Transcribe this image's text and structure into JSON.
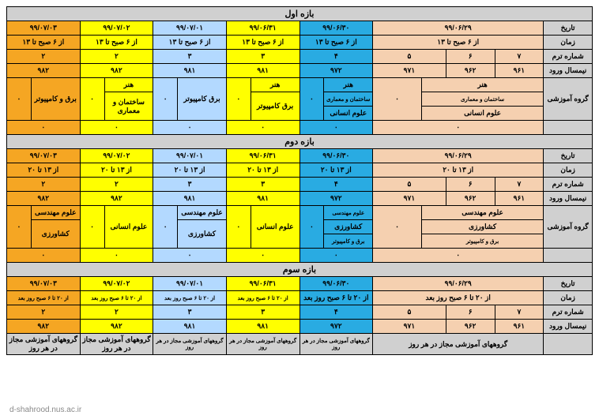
{
  "sections": [
    {
      "title": "بازه اول",
      "time_label": "از ۶ صبح تا ۱۳",
      "group_type": "morning"
    },
    {
      "title": "بازه دوم",
      "time_label": "از ۱۳ تا ۲۰",
      "group_type": "afternoon"
    },
    {
      "title": "بازه سوم",
      "time_label": "از ۲۰ تا ۶ صبح روز بعد",
      "group_type": "night"
    }
  ],
  "row_labels": {
    "date": "تاریخ",
    "time": "زمان",
    "term_no": "شماره ترم",
    "entry_sem": "نیمسال ورود",
    "edu_group": "گروه آموزشی"
  },
  "dates": {
    "d29": "۹۹/۰۶/۲۹",
    "d30": "۹۹/۰۶/۳۰",
    "d31": "۹۹/۰۶/۳۱",
    "d01": "۹۹/۰۷/۰۱",
    "d02": "۹۹/۰۷/۰۲",
    "d03": "۹۹/۰۷/۰۳"
  },
  "term_nos": {
    "r1": [
      "۷",
      "۶",
      "۵"
    ],
    "r2": "۴",
    "r3": "۳",
    "r4": "۳",
    "r5": "۲",
    "r6": "۲"
  },
  "entry_sems": {
    "r1": [
      "۹۶۱",
      "۹۶۲",
      "۹۷۱"
    ],
    "r2": "۹۷۲",
    "r3": "۹۸۱",
    "r4": "۹۸۱",
    "r5": "۹۸۲",
    "r6": "۹۸۲"
  },
  "groups_morning": {
    "peach": [
      "هنر",
      "ساختمان و معماری",
      "علوم انسانی"
    ],
    "blue": [
      "هنر",
      "ساختمان و معماری",
      "علوم انسانی"
    ],
    "yellow1_main": "برق کامپیوتر",
    "yellow1_side": [
      "هنر",
      "",
      "ساختمان و معماری"
    ],
    "lblue": "برق کامپیوتر",
    "yellow2_main": "ساختمان و معماری",
    "yellow2_side": "هنر",
    "orange": "برق و کامپیوتر"
  },
  "groups_afternoon": {
    "peach": [
      "علوم مهندسی",
      "کشاورزی",
      "برق و کامپیوتر"
    ],
    "blue": [
      "علوم مهندسی",
      "کشاورزی",
      "برق و کامپیوتر"
    ],
    "yellow1_main": "علوم انسانی",
    "yellow1_side": [
      "",
      "",
      ""
    ],
    "lblue_main": "کشاورزی",
    "lblue_side": "علوم مهندسی",
    "yellow2_main": "علوم انسانی",
    "orange_main": "کشاورزی",
    "orange_side": "علوم مهندسی"
  },
  "night_footer": "گروههای آموزشی مجاز در هر روز",
  "night_footer_small": "گروههای آموزشی مجاز در هر روز",
  "dot": "۰",
  "footer_link": "d-shahrood.nus.ac.ir",
  "colors": {
    "header": "#d0d0d0",
    "orange": "#f5a623",
    "yellow": "#ffff00",
    "lblue": "#b3d9ff",
    "blue": "#29abe2",
    "peach": "#f5d0b0"
  }
}
